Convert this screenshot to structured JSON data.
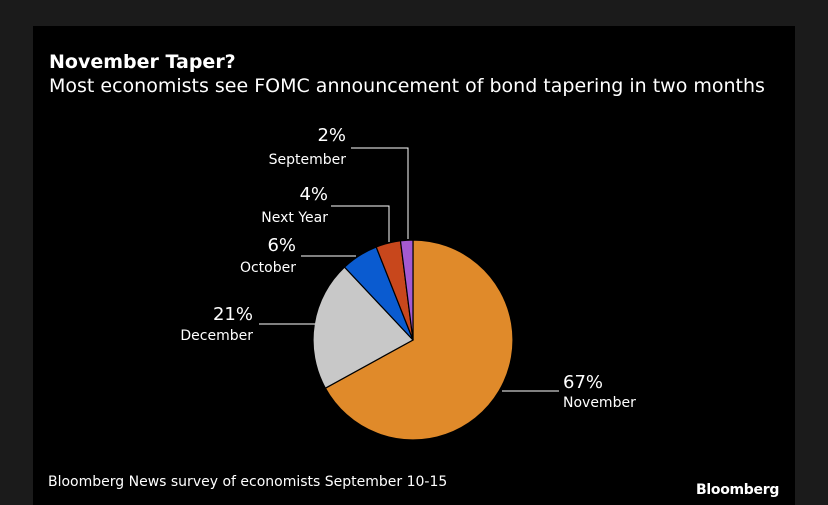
{
  "title": "November Taper?",
  "subtitle": "Most economists see FOMC announcement of bond tapering in two months",
  "footnote": "Bloomberg News survey of economists September 10-15",
  "logo": "Bloomberg",
  "chart_data": {
    "type": "pie",
    "title": "November Taper?",
    "subtitle": "Most economists see FOMC announcement of bond tapering in two months",
    "categories": [
      "November",
      "December",
      "October",
      "Next Year",
      "September"
    ],
    "values": [
      67,
      21,
      6,
      4,
      2
    ],
    "labels": [
      "67%",
      "21%",
      "6%",
      "4%",
      "2%"
    ],
    "colors": [
      "#e08a2a",
      "#c8c8c8",
      "#0a5bd0",
      "#c8471c",
      "#a45ad0"
    ],
    "start_angle_deg": 0,
    "direction": "clockwise",
    "source": "Bloomberg News survey of economists September 10-15"
  }
}
